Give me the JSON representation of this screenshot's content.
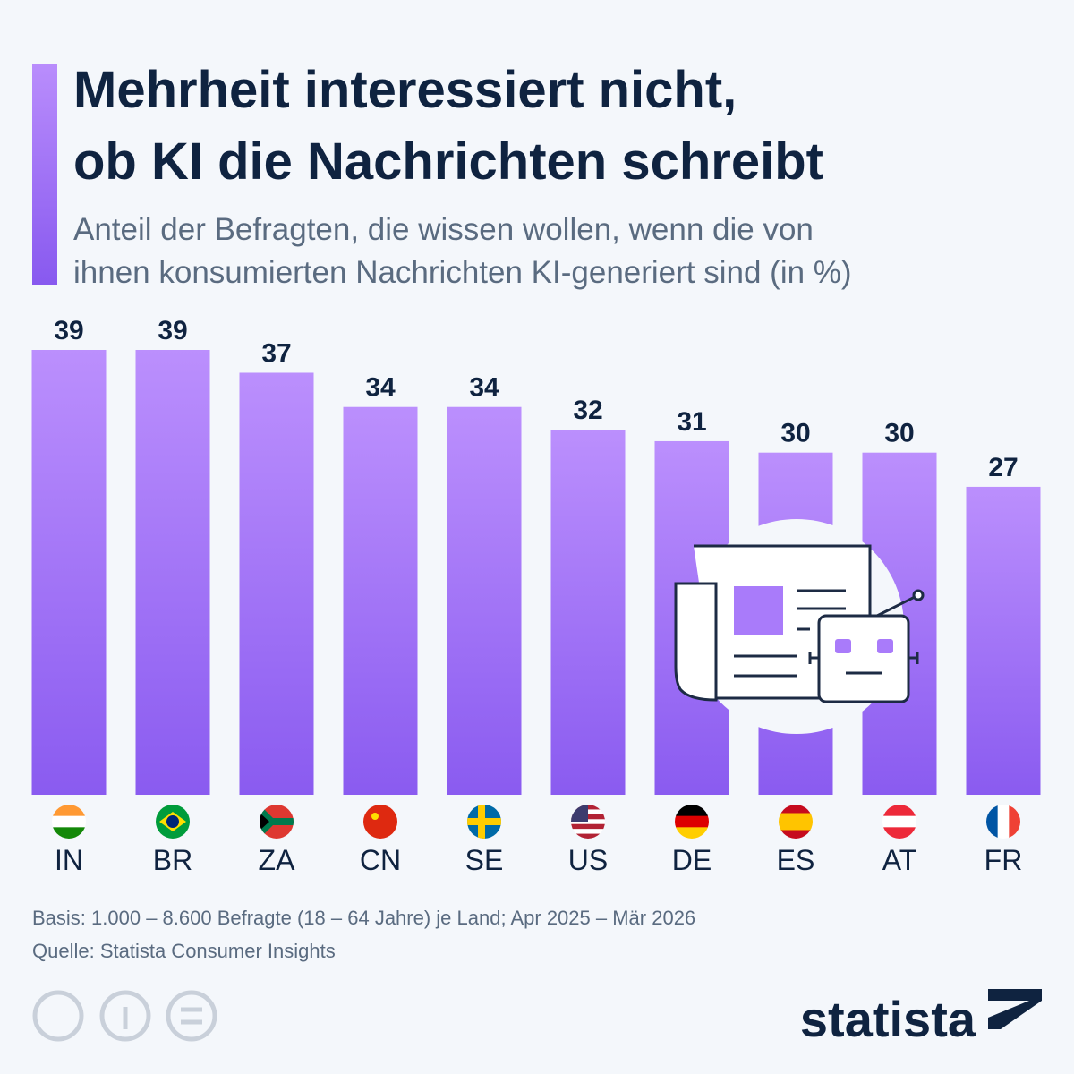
{
  "chart_data": {
    "type": "bar",
    "title": [
      "Mehrheit interessiert nicht,",
      "ob KI die Nachrichten schreibt"
    ],
    "subtitle": [
      "Anteil der Befragten, die wissen wollen, wenn die von",
      "ihnen konsumierten Nachrichten KI-generiert sind (in %)"
    ],
    "categories": [
      "IN",
      "BR",
      "ZA",
      "CN",
      "SE",
      "US",
      "DE",
      "ES",
      "AT",
      "FR"
    ],
    "values": [
      39,
      39,
      37,
      34,
      34,
      32,
      31,
      30,
      30,
      27
    ],
    "color": "#a97bfa",
    "notes": [
      "Basis: 1.000 – 8.600 Befragte (18 – 64 Jahre) je Land; Apr 2025 – Mär 2026",
      "Quelle: Statista Consumer Insights"
    ],
    "brand": "statista"
  }
}
